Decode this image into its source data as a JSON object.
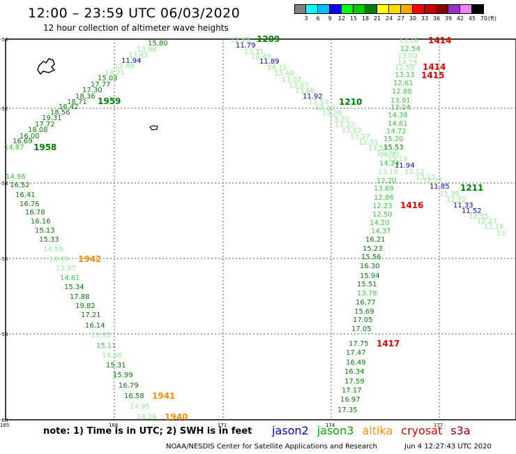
{
  "title": "12:00 – 23:59 UTC 06/03/2020",
  "subtitle": "12 hour collection of altimeter wave heights",
  "legend": {
    "unit": "(ft)",
    "colors": [
      "#808080",
      "#00ffff",
      "#00bfff",
      "#0000ff",
      "#00ff00",
      "#00cc00",
      "#008000",
      "#ffff00",
      "#ffd700",
      "#ffa500",
      "#ff0000",
      "#cc0000",
      "#8b0000",
      "#9932cc",
      "#ee82ee",
      "#000000"
    ],
    "labels": [
      "3",
      "6",
      "9",
      "12",
      "15",
      "18",
      "21",
      "24",
      "27",
      "30",
      "33",
      "36",
      "39",
      "42",
      "45",
      "70"
    ]
  },
  "map": {
    "lon_ticks": [
      "165",
      "168",
      "171",
      "174",
      "177"
    ],
    "lat_ticks": [
      "-50",
      "-52",
      "-54",
      "-56",
      "-58",
      "-60"
    ],
    "heights": [
      {
        "v": "12.59",
        "c": "#90ee90"
      },
      {
        "v": "11.79",
        "c": "#0000cd"
      },
      {
        "v": "13.31",
        "c": "#90ee90"
      },
      {
        "v": "12.49",
        "c": "#90ee90"
      },
      {
        "v": "11.89",
        "c": "#0000cd"
      },
      {
        "v": "14.11",
        "c": "#90ee90"
      },
      {
        "v": "13.40",
        "c": "#90ee90"
      },
      {
        "v": "13.02",
        "c": "#90ee90"
      },
      {
        "v": "13.57",
        "c": "#90ee90"
      },
      {
        "v": "13.69",
        "c": "#90ee90"
      },
      {
        "v": "11.92",
        "c": "#0000cd"
      },
      {
        "v": "13.53",
        "c": "#90ee90"
      },
      {
        "v": "13.19",
        "c": "#90ee90"
      },
      {
        "v": "13.28",
        "c": "#90ee90"
      },
      {
        "v": "13.20",
        "c": "#90ee90"
      },
      {
        "v": "13.22",
        "c": "#90ee90"
      },
      {
        "v": "13.62",
        "c": "#90ee90"
      },
      {
        "v": "13.27",
        "c": "#90ee90"
      },
      {
        "v": "12.51",
        "c": "#90ee90"
      },
      {
        "v": "13.59",
        "c": "#90ee90"
      },
      {
        "v": "13.33",
        "c": "#90ee90"
      },
      {
        "v": "13.19",
        "c": "#90ee90"
      },
      {
        "v": "11.94",
        "c": "#0000cd"
      },
      {
        "v": "12.12",
        "c": "#90ee90"
      },
      {
        "v": "13.12",
        "c": "#90ee90"
      },
      {
        "v": "12.27",
        "c": "#90ee90"
      },
      {
        "v": "11.85",
        "c": "#0000cd"
      },
      {
        "v": "12.39",
        "c": "#90ee90"
      },
      {
        "v": "12.22",
        "c": "#90ee90"
      },
      {
        "v": "11.33",
        "c": "#0000cd"
      },
      {
        "v": "11.52",
        "c": "#0000cd"
      },
      {
        "v": "12.55",
        "c": "#90ee90"
      },
      {
        "v": "12.27",
        "c": "#90ee90"
      },
      {
        "v": "13.16",
        "c": "#90ee90"
      },
      {
        "v": "13.",
        "c": "#90ee90"
      },
      {
        "v": "13.16",
        "c": "#90ee90"
      },
      {
        "v": "12.54",
        "c": "#32cd32"
      },
      {
        "v": "13.00",
        "c": "#90ee90"
      },
      {
        "v": "14.15",
        "c": "#90ee90"
      },
      {
        "v": "12.59",
        "c": "#90ee90"
      },
      {
        "v": "13.13",
        "c": "#32cd32"
      },
      {
        "v": "12.61",
        "c": "#32cd32"
      },
      {
        "v": "12.88",
        "c": "#32cd32"
      },
      {
        "v": "13.91",
        "c": "#32cd32"
      },
      {
        "v": "13.04",
        "c": "#32cd32"
      },
      {
        "v": "14.38",
        "c": "#32cd32"
      },
      {
        "v": "14.61",
        "c": "#32cd32"
      },
      {
        "v": "14.72",
        "c": "#32cd32"
      },
      {
        "v": "15.20",
        "c": "#32cd32"
      },
      {
        "v": "15.53",
        "c": "#008000"
      },
      {
        "v": "14.93",
        "c": "#90ee90"
      },
      {
        "v": "14.34",
        "c": "#32cd32"
      },
      {
        "v": "13.19",
        "c": "#90ee90"
      },
      {
        "v": "12.20",
        "c": "#32cd32"
      },
      {
        "v": "13.69",
        "c": "#32cd32"
      },
      {
        "v": "12.86",
        "c": "#32cd32"
      },
      {
        "v": "12.23",
        "c": "#32cd32"
      },
      {
        "v": "12.50",
        "c": "#32cd32"
      },
      {
        "v": "14.20",
        "c": "#32cd32"
      },
      {
        "v": "14.37",
        "c": "#32cd32"
      },
      {
        "v": "16.21",
        "c": "#008000"
      },
      {
        "v": "15.23",
        "c": "#008000"
      },
      {
        "v": "15.56",
        "c": "#008000"
      },
      {
        "v": "16.30",
        "c": "#008000"
      },
      {
        "v": "15.94",
        "c": "#008000"
      },
      {
        "v": "15.51",
        "c": "#008000"
      },
      {
        "v": "13.78",
        "c": "#32cd32"
      },
      {
        "v": "16.77",
        "c": "#008000"
      },
      {
        "v": "15.69",
        "c": "#008000"
      },
      {
        "v": "17.05",
        "c": "#008000"
      },
      {
        "v": "17.05",
        "c": "#008000"
      },
      {
        "v": "17.75",
        "c": "#008000"
      },
      {
        "v": "17.47",
        "c": "#008000"
      },
      {
        "v": "16.49",
        "c": "#008000"
      },
      {
        "v": "16.34",
        "c": "#008000"
      },
      {
        "v": "17.59",
        "c": "#008000"
      },
      {
        "v": "17.17",
        "c": "#008000"
      },
      {
        "v": "16.97",
        "c": "#008000"
      },
      {
        "v": "17.35",
        "c": "#008000"
      },
      {
        "v": "15.80",
        "c": "#008000"
      },
      {
        "v": "13.98",
        "c": "#90ee90"
      },
      {
        "v": "13.43",
        "c": "#90ee90"
      },
      {
        "v": "11.94",
        "c": "#0000cd"
      },
      {
        "v": "12.48",
        "c": "#90ee90"
      },
      {
        "v": "14.21",
        "c": "#90ee90"
      },
      {
        "v": "15.03",
        "c": "#008000"
      },
      {
        "v": "17.77",
        "c": "#008000"
      },
      {
        "v": "17.30",
        "c": "#008000"
      },
      {
        "v": "18.36",
        "c": "#008000"
      },
      {
        "v": "18.71",
        "c": "#008000"
      },
      {
        "v": "16.42",
        "c": "#008000"
      },
      {
        "v": "18.56",
        "c": "#008000"
      },
      {
        "v": "19.31",
        "c": "#008000"
      },
      {
        "v": "17.72",
        "c": "#008000"
      },
      {
        "v": "18.08",
        "c": "#008000"
      },
      {
        "v": "16.00",
        "c": "#008000"
      },
      {
        "v": "16.69",
        "c": "#008000"
      },
      {
        "v": "14.87",
        "c": "#32cd32"
      },
      {
        "v": "14.96",
        "c": "#32cd32"
      },
      {
        "v": "16.52",
        "c": "#008000"
      },
      {
        "v": "16.41",
        "c": "#008000"
      },
      {
        "v": "16.76",
        "c": "#008000"
      },
      {
        "v": "16.78",
        "c": "#008000"
      },
      {
        "v": "16.16",
        "c": "#008000"
      },
      {
        "v": "15.13",
        "c": "#008000"
      },
      {
        "v": "15.33",
        "c": "#008000"
      },
      {
        "v": "14.59",
        "c": "#90ee90"
      },
      {
        "v": "14.49",
        "c": "#90ee90"
      },
      {
        "v": "13.87",
        "c": "#90ee90"
      },
      {
        "v": "14.61",
        "c": "#32cd32"
      },
      {
        "v": "15.34",
        "c": "#008000"
      },
      {
        "v": "17.88",
        "c": "#008000"
      },
      {
        "v": "19.82",
        "c": "#008000"
      },
      {
        "v": "17.21",
        "c": "#008000"
      },
      {
        "v": "16.14",
        "c": "#008000"
      },
      {
        "v": "13.93",
        "c": "#90ee90"
      },
      {
        "v": "15.11",
        "c": "#32cd32"
      },
      {
        "v": "14.48",
        "c": "#90ee90"
      },
      {
        "v": "15.31",
        "c": "#008000"
      },
      {
        "v": "15.99",
        "c": "#008000"
      },
      {
        "v": "16.79",
        "c": "#008000"
      },
      {
        "v": "16.58",
        "c": "#008000"
      },
      {
        "v": "14.95",
        "c": "#90ee90"
      },
      {
        "v": "14.16",
        "c": "#90ee90"
      },
      {
        "v": "13.83",
        "c": "#90ee90"
      }
    ],
    "passes": [
      {
        "t": "1209",
        "c": "#008000"
      },
      {
        "t": "1210",
        "c": "#008000"
      },
      {
        "t": "1211",
        "c": "#008000"
      },
      {
        "t": "1414",
        "c": "#dd0000"
      },
      {
        "t": "1414",
        "c": "#dd0000"
      },
      {
        "t": "1415",
        "c": "#dd0000"
      },
      {
        "t": "1416",
        "c": "#dd0000"
      },
      {
        "t": "1417",
        "c": "#dd0000"
      },
      {
        "t": "1959",
        "c": "#008000"
      },
      {
        "t": "1958",
        "c": "#008000"
      },
      {
        "t": "1942",
        "c": "#ff8c00"
      },
      {
        "t": "1941",
        "c": "#ff8c00"
      },
      {
        "t": "1940",
        "c": "#ff8c00"
      }
    ]
  },
  "note": "note:  1) Time is in UTC;  2) SWH is in feet",
  "missions": [
    {
      "name": "jason2",
      "color": "#0000cd"
    },
    {
      "name": "jason3",
      "color": "#00aa00"
    },
    {
      "name": "altika",
      "color": "#ff8c00"
    },
    {
      "name": "cryosat",
      "color": "#dd0000"
    },
    {
      "name": "s3a",
      "color": "#8b0000"
    }
  ],
  "footer": "NOAA/NESDIS Center for Satellite Applications and Research",
  "footer_date": "Jun  4 12:27:43 UTC 2020"
}
